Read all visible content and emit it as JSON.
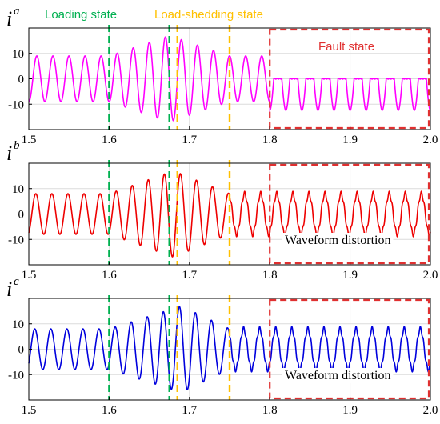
{
  "colors": {
    "loading": "#00b050",
    "shedding": "#ffc000",
    "fault_box": "#e03030",
    "grid": "#dcdcdc"
  },
  "annotations": {
    "loading_state": "Loading state",
    "shedding_state": "Load-shedding state",
    "fault_state": "Fault state",
    "waveform_distortion": "Waveform distortion"
  },
  "chart_data": [
    {
      "type": "line",
      "title": "i",
      "title_superscript": "a",
      "xlim": [
        1.5,
        2.0
      ],
      "ylim": [
        -20,
        20
      ],
      "x_ticks": [
        "1.5",
        "1.6",
        "1.7",
        "1.8",
        "1.9",
        "2.0"
      ],
      "y_ticks": [
        "10",
        "0",
        "-10"
      ],
      "grid": true,
      "color": "#ff00ff",
      "frequency_hz": 50,
      "amplitude_segments": [
        {
          "x": [
            1.5,
            1.6
          ],
          "amplitude": 9
        },
        {
          "x": [
            1.6,
            1.675
          ],
          "amplitude_start": 9,
          "amplitude_end": 17
        },
        {
          "x": [
            1.675,
            1.75
          ],
          "amplitude_start": 17,
          "amplitude_end": 9
        },
        {
          "x": [
            1.75,
            1.8
          ],
          "amplitude": 9
        },
        {
          "x": [
            1.8,
            2.0
          ],
          "amplitude": 8,
          "distortion": "flat-top-near-zero"
        }
      ],
      "annotations": [
        "Loading state",
        "Load-shedding state",
        "Fault state"
      ]
    },
    {
      "type": "line",
      "title": "i",
      "title_superscript": "b",
      "xlim": [
        1.5,
        2.0
      ],
      "ylim": [
        -20,
        20
      ],
      "x_ticks": [
        "1.5",
        "1.6",
        "1.7",
        "1.8",
        "1.9",
        "2.0"
      ],
      "y_ticks": [
        "10",
        "0",
        "-10"
      ],
      "grid": true,
      "color": "#ee0000",
      "frequency_hz": 50,
      "amplitude_segments": [
        {
          "x": [
            1.5,
            1.6
          ],
          "amplitude": 8
        },
        {
          "x": [
            1.6,
            1.68
          ],
          "amplitude_start": 8,
          "amplitude_end": 17
        },
        {
          "x": [
            1.68,
            1.75
          ],
          "amplitude_start": 17,
          "amplitude_end": 8
        },
        {
          "x": [
            1.75,
            2.0
          ],
          "amplitude": 8,
          "distortion": "ripple"
        }
      ],
      "annotations": [
        "Waveform distortion"
      ]
    },
    {
      "type": "line",
      "title": "i",
      "title_superscript": "c",
      "xlim": [
        1.5,
        2.0
      ],
      "ylim": [
        -20,
        20
      ],
      "x_ticks": [
        "1.5",
        "1.6",
        "1.7",
        "1.8",
        "1.9",
        "2.0"
      ],
      "y_ticks": [
        "10",
        "0",
        "-10"
      ],
      "grid": true,
      "color": "#0000dd",
      "frequency_hz": 50,
      "amplitude_segments": [
        {
          "x": [
            1.5,
            1.6
          ],
          "amplitude": 8
        },
        {
          "x": [
            1.6,
            1.69
          ],
          "amplitude_start": 8,
          "amplitude_end": 17
        },
        {
          "x": [
            1.69,
            1.75
          ],
          "amplitude_start": 17,
          "amplitude_end": 8
        },
        {
          "x": [
            1.75,
            2.0
          ],
          "amplitude": 8,
          "distortion": "ripple"
        }
      ],
      "annotations": [
        "Waveform distortion"
      ]
    }
  ],
  "state_lines": {
    "loading_x": [
      1.6,
      1.675
    ],
    "shedding_x": [
      1.685,
      1.75
    ],
    "fault_box_x": [
      1.8,
      2.0
    ]
  }
}
